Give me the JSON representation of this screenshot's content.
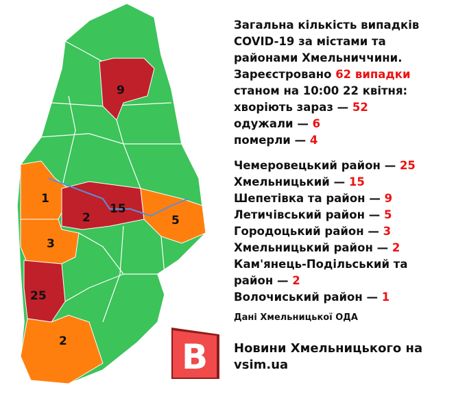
{
  "header": {
    "title_lines": [
      "Загальна кількість випадків",
      "COVID-19 за містами та",
      "районами Хмельниччини."
    ],
    "registered_prefix": "Зареєстровано ",
    "registered_value": "62 випадки",
    "as_of": "станом на 10:00 22 квітня:",
    "sick_label": "хворіють зараз — ",
    "sick_value": "52",
    "recovered_label": "одужали — ",
    "recovered_value": "6",
    "died_label": "померли — ",
    "died_value": "4"
  },
  "districts": [
    {
      "label": "Чемеровецький район — ",
      "value": "25"
    },
    {
      "label": "Хмельницький — ",
      "value": "15"
    },
    {
      "label": "Шепетівка та район — ",
      "value": "9"
    },
    {
      "label": "Летичівський район — ",
      "value": "5"
    },
    {
      "label": "Городоцький район — ",
      "value": "3"
    },
    {
      "label": "Хмельницький район — ",
      "value": "2"
    },
    {
      "label": "Кам'янець-Подільський та",
      "label2": "район — ",
      "value": "2"
    },
    {
      "label": "Волочиський район — ",
      "value": "1"
    }
  ],
  "map_labels": [
    "9",
    "1",
    "2",
    "15",
    "5",
    "3",
    "25",
    "2"
  ],
  "source": "Дані Хмельницької ОДА",
  "brand": {
    "line1": "Новини Хмельницького на",
    "line2": "vsim.ua",
    "logo_letter": "B"
  },
  "colors": {
    "none": "#3cc35a",
    "low": "#ff7f0e",
    "high": "#c0202a",
    "accent": "#ee1111"
  }
}
